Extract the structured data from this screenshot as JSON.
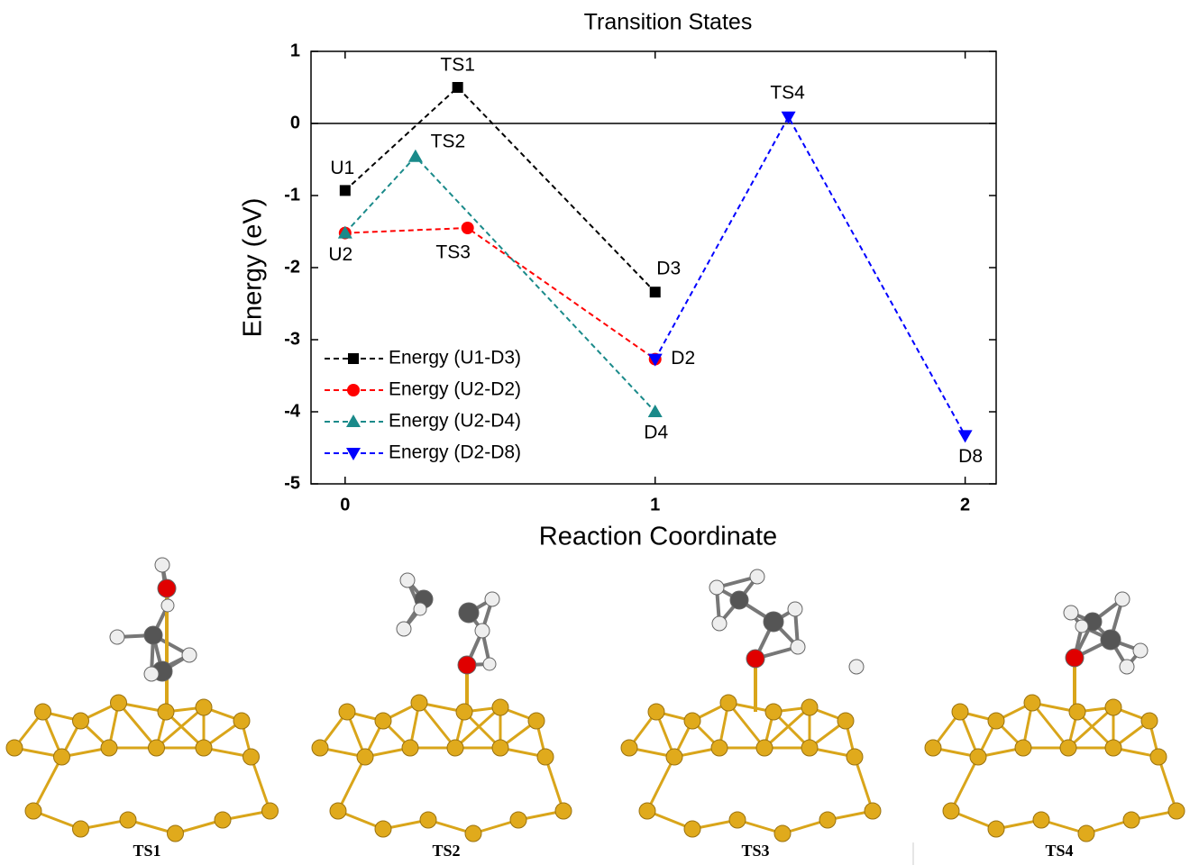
{
  "chart_data": {
    "type": "line",
    "title": "Transition States",
    "x_label": "Reaction Coordinate",
    "y_label": "Energy (eV)",
    "xlim": [
      -0.11,
      2.1
    ],
    "ylim": [
      -5,
      1
    ],
    "xticks": [
      0,
      1,
      2
    ],
    "yticks": [
      -5,
      -4,
      -3,
      -2,
      -1,
      0,
      1
    ],
    "reference_line": 0,
    "legend": "lower left",
    "series": [
      {
        "name": "Energy (U1-D3)",
        "color": "#000000",
        "marker": "square",
        "x": [
          0,
          0.363,
          1
        ],
        "values": [
          -0.93,
          0.5,
          -2.34
        ],
        "point_labels": [
          "U1",
          "TS1",
          "D3"
        ]
      },
      {
        "name": "Energy (U2-D2)",
        "color": "#ff0000",
        "marker": "circle",
        "x": [
          0,
          0.395,
          1
        ],
        "values": [
          -1.52,
          -1.45,
          -3.27
        ],
        "point_labels": [
          "U2",
          "TS3",
          "D2"
        ]
      },
      {
        "name": "Energy (U2-D4)",
        "color": "#1a8a8a",
        "marker": "triangle-up",
        "x": [
          0,
          0.227,
          1
        ],
        "values": [
          -1.52,
          -0.46,
          -4.0
        ],
        "point_labels": [
          null,
          "TS2",
          "D4"
        ]
      },
      {
        "name": "Energy (D2-D8)",
        "color": "#0000ff",
        "marker": "triangle-down",
        "x": [
          1,
          1.43,
          2
        ],
        "values": [
          -3.27,
          0.09,
          -4.33
        ],
        "point_labels": [
          null,
          "TS4",
          "D8"
        ]
      }
    ]
  },
  "structures": {
    "labels": [
      "TS1",
      "TS2",
      "TS3",
      "TS4"
    ]
  }
}
